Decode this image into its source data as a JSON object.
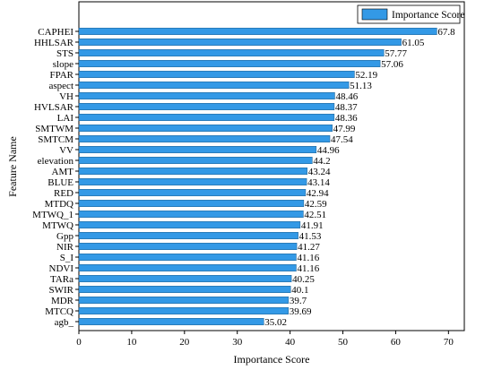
{
  "chart_data": {
    "type": "bar",
    "orientation": "horizontal",
    "xlabel": "Importance Score",
    "ylabel": "Feature Name",
    "xlim": [
      0,
      73
    ],
    "xticks": [
      0,
      10,
      20,
      30,
      40,
      50,
      60,
      70
    ],
    "legend": {
      "label": "Importance Score",
      "placement": "top-right"
    },
    "bar_color": "#3399e6",
    "categories": [
      "CAPHEI",
      "HHLSAR",
      "STS",
      "slope",
      "FPAR",
      "aspect",
      "VH",
      "HVLSAR",
      "LAI",
      "SMTWM",
      "SMTCM",
      "VV",
      "elevation",
      "AMT",
      "BLUE",
      "RED",
      "MTDQ",
      "MTWQ_1",
      "MTWQ",
      "Gpp",
      "NIR",
      "S_I",
      "NDVI",
      "TARa",
      "SWIR",
      "MDR",
      "MTCQ",
      "agb_"
    ],
    "values": [
      67.8,
      61.05,
      57.77,
      57.06,
      52.19,
      51.13,
      48.46,
      48.37,
      48.36,
      47.99,
      47.54,
      44.96,
      44.2,
      43.24,
      43.14,
      42.94,
      42.59,
      42.51,
      41.91,
      41.53,
      41.27,
      41.16,
      41.16,
      40.25,
      40.1,
      39.7,
      39.69,
      35.02
    ],
    "value_labels": [
      "67.8",
      "61.05",
      "57.77",
      "57.06",
      "52.19",
      "51.13",
      "48.46",
      "48.37",
      "48.36",
      "47.99",
      "47.54",
      "44.96",
      "44.2",
      "43.24",
      "43.14",
      "42.94",
      "42.59",
      "42.51",
      "41.91",
      "41.53",
      "41.27",
      "41.16",
      "41.16",
      "40.25",
      "40.1",
      "39.7",
      "39.69",
      "35.02"
    ]
  }
}
